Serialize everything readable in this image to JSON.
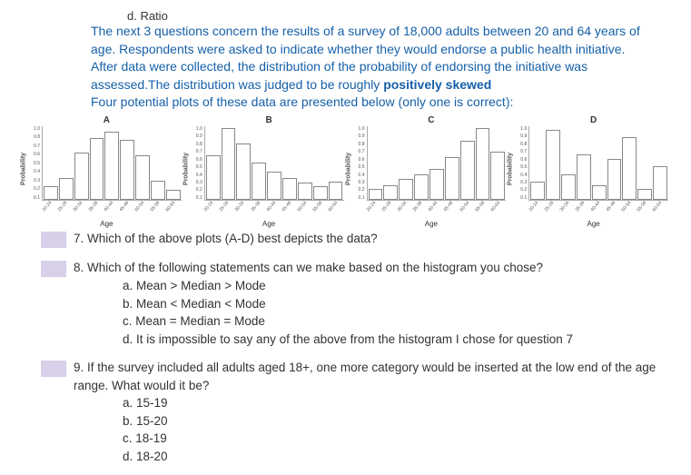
{
  "optionD": "d.  Ratio",
  "intro": {
    "p1": "The next 3 questions concern the results of a survey of 18,000 adults between 20 and 64 years of age. Respondents were asked to indicate whether they would endorse a public health initiative. After data were collected, the distribution of the probability of endorsing the initiative was assessed.The distribution was judged to be roughly ",
    "skew": "positively skewed",
    "p2": "Four potential plots of these data are presented below (only one is correct):"
  },
  "charts": {
    "ylabel": "Probability",
    "xlabel": "Age",
    "xticks": [
      "20-24",
      "25-29",
      "30-34",
      "35-39",
      "40-44",
      "45-49",
      "50-54",
      "55-59",
      "60-64"
    ],
    "yticks_A": [
      "1.0",
      "0.8",
      "0.7",
      "0.6",
      "0.5",
      "0.4",
      "0.3",
      "0.2",
      "0.1"
    ],
    "yticks_B": [
      "1.0",
      "0.9",
      "0.8",
      "0.7",
      "0.6",
      "0.5",
      "0.4",
      "0.3",
      "0.2",
      "0.1"
    ],
    "panels": [
      {
        "label": "A",
        "values": [
          0.18,
          0.3,
          0.64,
          0.84,
          0.92,
          0.82,
          0.6,
          0.26,
          0.14
        ]
      },
      {
        "label": "B",
        "values": [
          0.6,
          0.97,
          0.77,
          0.5,
          0.38,
          0.3,
          0.24,
          0.18,
          0.25
        ]
      },
      {
        "label": "C",
        "values": [
          0.15,
          0.2,
          0.28,
          0.35,
          0.42,
          0.58,
          0.8,
          0.98,
          0.65
        ]
      },
      {
        "label": "D",
        "values": [
          0.25,
          0.95,
          0.35,
          0.62,
          0.2,
          0.55,
          0.85,
          0.15,
          0.46
        ]
      }
    ],
    "bar_border": "#888888",
    "axis_color": "#aaaaaa"
  },
  "q7": "7.  Which of the above plots (A-D) best depicts the data?",
  "q8": {
    "text": "8.  Which of the following statements can we make based on the histogram you chose?",
    "a": "a.  Mean > Median > Mode",
    "b": "b.  Mean < Median < Mode",
    "c": "c.  Mean = Median = Mode",
    "d": "d.  It is impossible to say any of the above from the histogram I chose for question 7"
  },
  "q9": {
    "text": "9.  If the survey included all adults aged 18+, one more category would be inserted at the low end of the age range. What would it be?",
    "a": "a.  15-19",
    "b": "b.  15-20",
    "c": "c.  18-19",
    "d": "d.  18-20"
  }
}
